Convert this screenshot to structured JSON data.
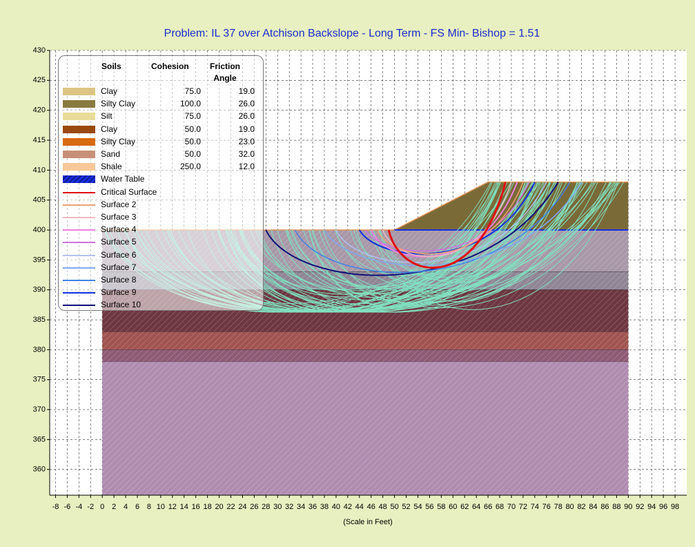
{
  "chart_data": {
    "type": "slope-stability",
    "title": "Problem: IL 37 over Atchison Backslope - Long Term - FS Min- Bishop = 1.51",
    "x_label": "(Scale in Feet)",
    "xlim": [
      -9,
      100
    ],
    "ylim": [
      355.7,
      430
    ],
    "xticks": [
      -8,
      -6,
      -4,
      -2,
      0,
      2,
      4,
      6,
      8,
      10,
      12,
      14,
      16,
      18,
      20,
      22,
      24,
      26,
      28,
      30,
      32,
      34,
      36,
      38,
      40,
      42,
      44,
      46,
      48,
      50,
      52,
      54,
      56,
      58,
      60,
      62,
      64,
      66,
      68,
      70,
      72,
      74,
      76,
      78,
      80,
      82,
      84,
      86,
      88,
      90,
      92,
      94,
      96,
      98
    ],
    "yticks": [
      360,
      365,
      370,
      375,
      380,
      385,
      390,
      395,
      400,
      405,
      410,
      415,
      420,
      425,
      430
    ],
    "grid": true,
    "legend_headers": [
      "Soils",
      "Cohesion",
      "Friction Angle"
    ],
    "soils": [
      {
        "name": "Clay",
        "color": "#dcc584",
        "cohesion": "75.0",
        "friction_angle": "19.0"
      },
      {
        "name": "Silty Clay",
        "color": "#8a7a40",
        "cohesion": "100.0",
        "friction_angle": "26.0"
      },
      {
        "name": "Silt",
        "color": "#e8dc98",
        "cohesion": "75.0",
        "friction_angle": "26.0"
      },
      {
        "name": "Clay",
        "color": "#9a4a10",
        "cohesion": "50.0",
        "friction_angle": "19.0"
      },
      {
        "name": "Silty Clay",
        "color": "#d86a10",
        "cohesion": "50.0",
        "friction_angle": "23.0"
      },
      {
        "name": "Sand",
        "color": "#c89078",
        "cohesion": "50.0",
        "friction_angle": "32.0"
      },
      {
        "name": "Shale",
        "color": "#f8c898",
        "cohesion": "250.0",
        "friction_angle": "12.0"
      }
    ],
    "lines": [
      {
        "name": "Water Table",
        "color": "#1a2ee0"
      },
      {
        "name": "Critical Surface",
        "color": "#e01010"
      },
      {
        "name": "Surface 2",
        "color": "#f0a070"
      },
      {
        "name": "Surface 3",
        "color": "#f0b8c0"
      },
      {
        "name": "Surface 4",
        "color": "#f080e0"
      },
      {
        "name": "Surface 5",
        "color": "#d070e0"
      },
      {
        "name": "Surface 6",
        "color": "#b0c0f0"
      },
      {
        "name": "Surface 7",
        "color": "#80a8f0"
      },
      {
        "name": "Surface 8",
        "color": "#4080e8"
      },
      {
        "name": "Surface 9",
        "color": "#1030e0"
      },
      {
        "name": "Surface 10",
        "color": "#10107a"
      }
    ]
  }
}
